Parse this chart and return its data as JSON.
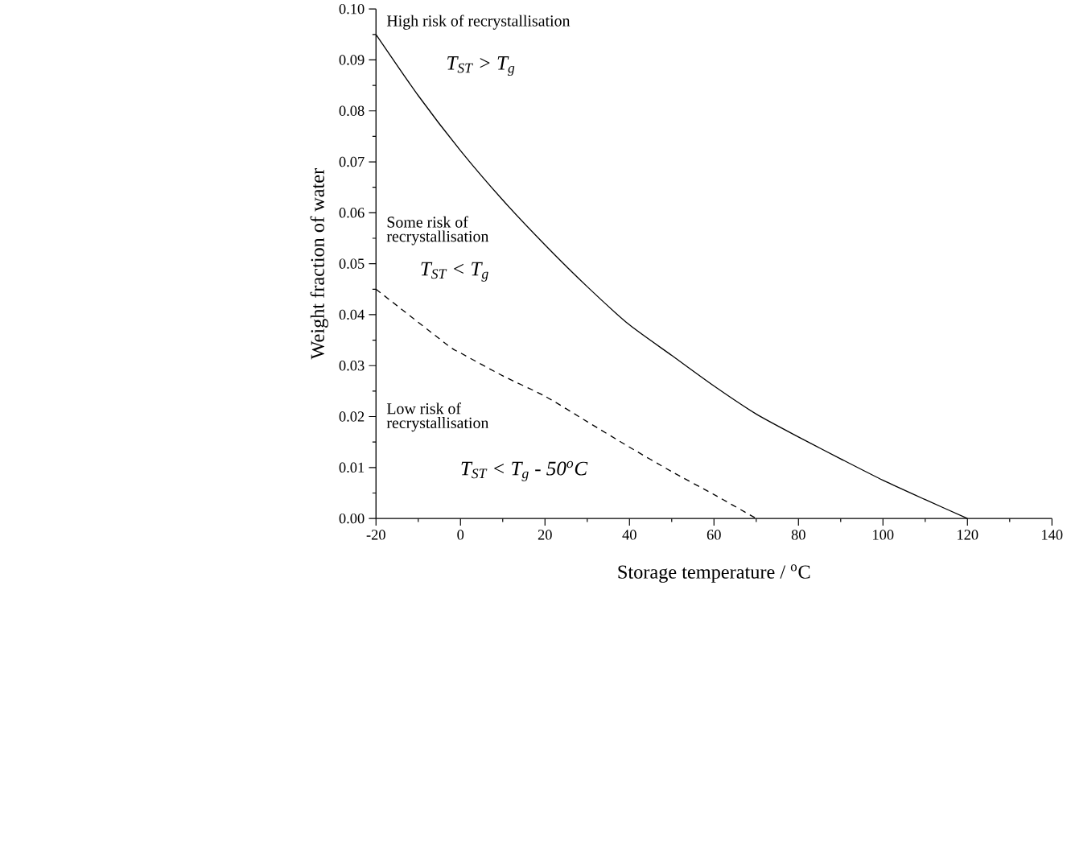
{
  "chart_data": {
    "type": "line",
    "xlabel": "Storage temperature / $^{o}$C",
    "ylabel": "Weight fraction of water",
    "series": [
      {
        "color": "#000000",
        "line_style": "solid",
        "x": [
          -20,
          -10,
          0,
          10,
          20,
          30,
          40,
          50,
          60,
          70,
          80,
          90,
          100,
          110,
          120
        ],
        "values": [
          0.095,
          0.083,
          0.0722,
          0.0625,
          0.0537,
          0.0455,
          0.038,
          0.032,
          0.026,
          0.0205,
          0.016,
          0.0117,
          0.0075,
          0.0037,
          0
        ]
      },
      {
        "color": "#000000",
        "line_style": "dashed",
        "x": [
          -20,
          -3,
          0,
          10,
          20,
          30,
          40,
          50,
          60,
          70
        ],
        "values": [
          0.045,
          0.034,
          0.0325,
          0.028,
          0.024,
          0.019,
          0.014,
          0.0092,
          0.0047,
          0
        ]
      }
    ],
    "xlim": [
      -20,
      140
    ],
    "xticks": [
      -20,
      0,
      20,
      40,
      60,
      80,
      100,
      120,
      140
    ],
    "ylim": [
      0,
      0.1
    ],
    "yticks": [
      {
        "value": 0,
        "label": "0.00"
      },
      {
        "value": 0.01,
        "label": "0.01"
      },
      {
        "value": 0.02,
        "label": "0.02"
      },
      {
        "value": 0.03,
        "label": "0.03"
      },
      {
        "value": 0.04,
        "label": "0.04"
      },
      {
        "value": 0.05,
        "label": "0.05"
      },
      {
        "value": 0.06,
        "label": "0.06"
      },
      {
        "value": 0.07,
        "label": "0.07"
      },
      {
        "value": 0.08,
        "label": "0.08"
      },
      {
        "value": 0.09,
        "label": "0.09"
      },
      {
        "value": 0.1,
        "label": "0.10"
      }
    ],
    "grid": false,
    "marker": "none",
    "annotations": [
      "High risk of recrystallisation",
      "T$_{ST}$ > T$_{g}$",
      "Some risk of recrystallisation",
      "T$_{ST}$ < T$_{g}$",
      "Low risk of recrystallisation",
      "T$_{ST}$ < T$_{g}$ - 50$^{o}$C"
    ]
  }
}
